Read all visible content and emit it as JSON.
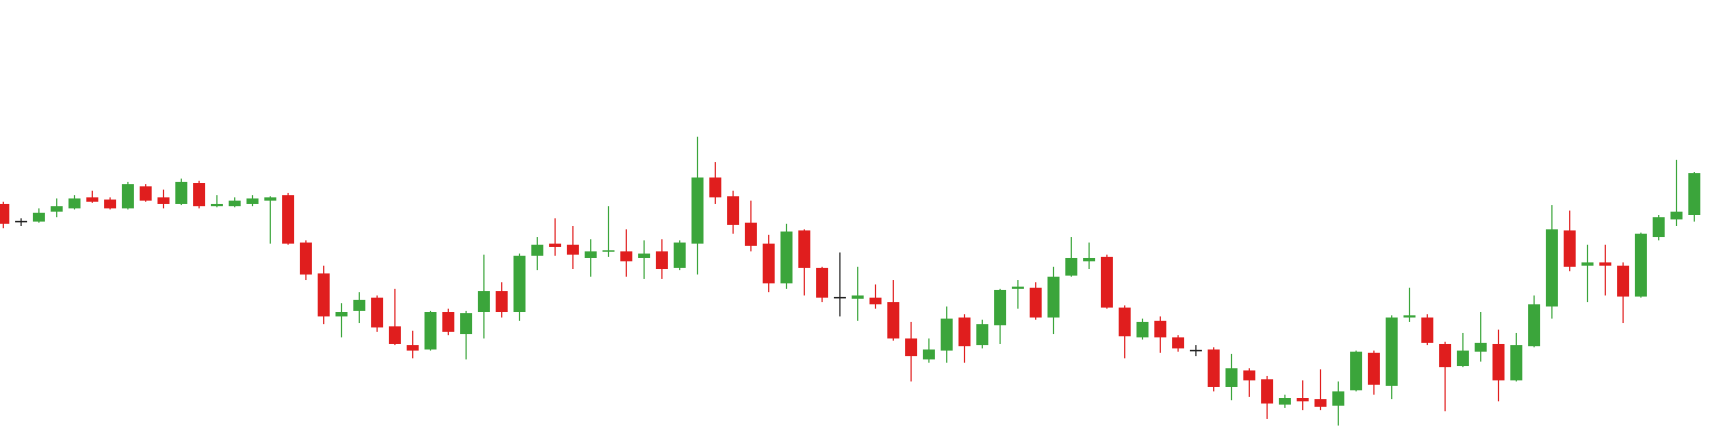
{
  "chart_data": {
    "type": "candlestick",
    "up_color": "#3ba53b",
    "down_color": "#e01e1e",
    "doji_color": "#222222",
    "ylim": [
      0,
      400
    ],
    "open": [
      215,
      199,
      199,
      208,
      211,
      221,
      219,
      211,
      231,
      221,
      215,
      234,
      213,
      213,
      215,
      218,
      223,
      180,
      152,
      113,
      118,
      130,
      104,
      87,
      83,
      117,
      97,
      117,
      136,
      117,
      168,
      179,
      178,
      166,
      172,
      172,
      166,
      172,
      157,
      179,
      239,
      222,
      198,
      179,
      143,
      191,
      157,
      130,
      129,
      130,
      126,
      93,
      74,
      82,
      112,
      87,
      105,
      138,
      139,
      112,
      150,
      163,
      167,
      121,
      94,
      109,
      94,
      82,
      83,
      49,
      64,
      56,
      33,
      39,
      38,
      32,
      46,
      80,
      50,
      112,
      112,
      88,
      68,
      81,
      88,
      55,
      86,
      122,
      191,
      159,
      162,
      159,
      131,
      185,
      201,
      205
    ],
    "high": [
      217,
      202,
      211,
      220,
      223,
      227,
      221,
      235,
      233,
      228,
      238,
      236,
      223,
      221,
      223,
      222,
      225,
      182,
      159,
      125,
      135,
      132,
      138,
      100,
      118,
      120,
      118,
      169,
      144,
      170,
      185,
      202,
      195,
      183,
      213,
      192,
      182,
      183,
      182,
      276,
      253,
      227,
      218,
      187,
      197,
      192,
      158,
      171,
      158,
      142,
      146,
      108,
      93,
      122,
      115,
      110,
      138,
      146,
      144,
      158,
      185,
      180,
      169,
      123,
      111,
      113,
      96,
      87,
      85,
      79,
      66,
      59,
      42,
      55,
      65,
      54,
      82,
      82,
      114,
      139,
      115,
      90,
      98,
      117,
      101,
      98,
      132,
      214,
      209,
      178,
      178,
      162,
      189,
      205,
      255,
      244
    ],
    "low": [
      193,
      195,
      198,
      203,
      210,
      216,
      210,
      210,
      217,
      211,
      214,
      211,
      212,
      212,
      213,
      179,
      178,
      146,
      106,
      94,
      107,
      99,
      87,
      75,
      82,
      96,
      74,
      93,
      112,
      109,
      155,
      168,
      156,
      149,
      167,
      149,
      147,
      147,
      155,
      151,
      215,
      188,
      172,
      135,
      138,
      132,
      126,
      113,
      109,
      120,
      91,
      54,
      71,
      71,
      71,
      84,
      88,
      120,
      110,
      97,
      149,
      156,
      120,
      75,
      92,
      80,
      81,
      77,
      45,
      37,
      40,
      20,
      30,
      28,
      28,
      14,
      45,
      42,
      38,
      108,
      87,
      27,
      67,
      72,
      36,
      54,
      85,
      111,
      154,
      126,
      132,
      107,
      130,
      182,
      195,
      199
    ],
    "close": [
      197,
      199,
      207,
      213,
      220,
      217,
      211,
      233,
      218,
      215,
      235,
      213,
      215,
      218,
      220,
      221,
      179,
      151,
      113,
      117,
      128,
      103,
      88,
      82,
      117,
      99,
      116,
      136,
      117,
      168,
      178,
      176,
      169,
      172,
      173,
      163,
      170,
      156,
      180,
      239,
      221,
      196,
      177,
      143,
      190,
      157,
      130,
      130,
      132,
      124,
      93,
      77,
      83,
      111,
      86,
      106,
      137,
      140,
      112,
      149,
      166,
      166,
      121,
      95,
      108,
      94,
      84,
      82,
      49,
      66,
      55,
      34,
      39,
      36,
      31,
      45,
      81,
      51,
      112,
      114,
      89,
      67,
      82,
      89,
      55,
      87,
      124,
      192,
      158,
      162,
      159,
      131,
      188,
      203,
      208,
      243
    ]
  }
}
